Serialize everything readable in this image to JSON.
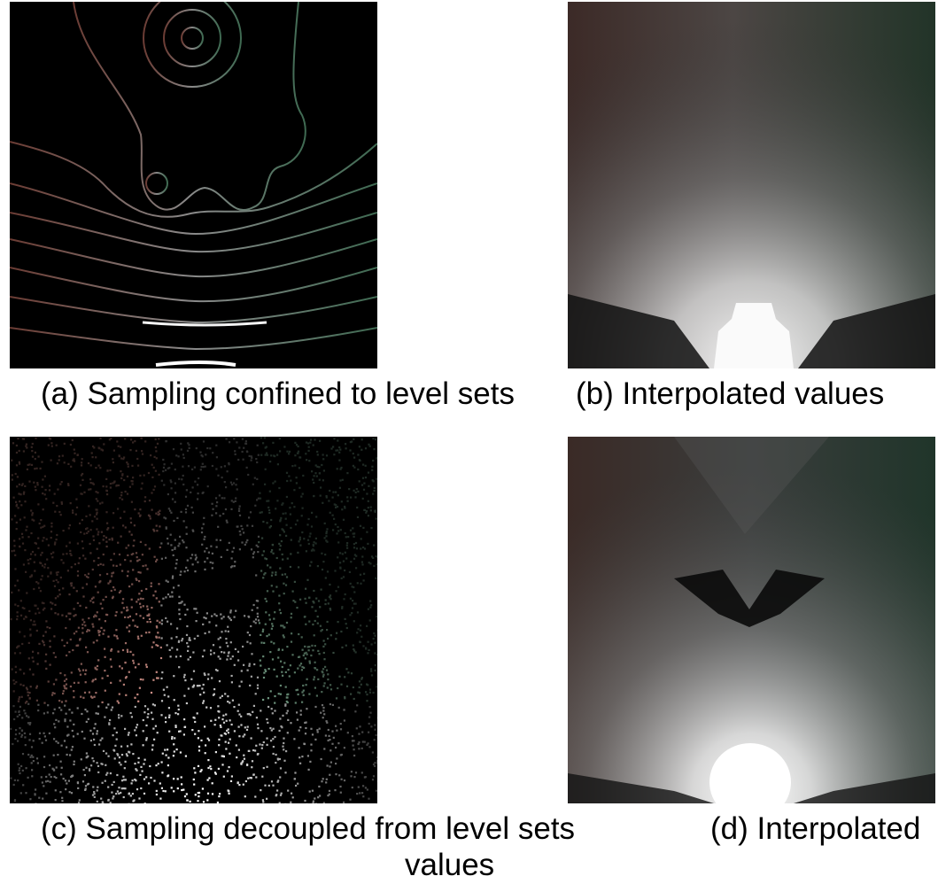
{
  "figure": {
    "captions": {
      "a": "(a) Sampling confined to level sets",
      "b": "(b) Interpolated values",
      "c": "(c) Sampling decoupled from level sets",
      "c_wrap": "values",
      "d": "(d) Interpolated"
    },
    "panels": [
      {
        "id": "a",
        "content": "sparse-samples-on-level-set-contours"
      },
      {
        "id": "b",
        "content": "interpolated-field-from-contour-samples"
      },
      {
        "id": "c",
        "content": "random-point-samples"
      },
      {
        "id": "d",
        "content": "interpolated-field-from-random-samples"
      }
    ],
    "colors": {
      "background": "#000000",
      "warm_tint": "#5a3a33",
      "cool_tint": "#2c4a3c",
      "highlight": "#ffffff"
    }
  }
}
